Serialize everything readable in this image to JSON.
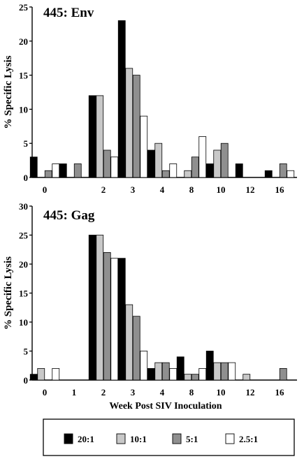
{
  "chart_data": [
    {
      "type": "bar",
      "title": "445: Env",
      "ylabel": "% Specific Lysis",
      "xlabel": "",
      "ylim": [
        0,
        25
      ],
      "yticks": [
        0,
        5,
        10,
        15,
        20,
        25
      ],
      "categories": [
        "0",
        "1",
        "2",
        "3",
        "4",
        "8",
        "10",
        "12",
        "16"
      ],
      "x_tick_labels": [
        "0",
        "",
        "2",
        "3",
        "4",
        "8",
        "10",
        "12",
        "16"
      ],
      "series": [
        {
          "name": "20:1",
          "color": "#000000",
          "values": [
            3,
            2,
            12,
            23,
            4,
            0,
            2,
            2,
            1
          ]
        },
        {
          "name": "10:1",
          "color": "#c8c8c8",
          "values": [
            0,
            0,
            12,
            16,
            5,
            1,
            4,
            0,
            0
          ]
        },
        {
          "name": "5:1",
          "color": "#8f8f8f",
          "values": [
            1,
            2,
            4,
            15,
            1,
            3,
            5,
            0,
            2
          ]
        },
        {
          "name": "2.5:1",
          "color": "#ffffff",
          "values": [
            2,
            0,
            3,
            9,
            2,
            6,
            0,
            0,
            1
          ]
        }
      ]
    },
    {
      "type": "bar",
      "title": "445: Gag",
      "ylabel": "% Specific Lysis",
      "xlabel": "Week Post SIV Inoculation",
      "ylim": [
        0,
        30
      ],
      "yticks": [
        0,
        5,
        10,
        15,
        20,
        25,
        30
      ],
      "categories": [
        "0",
        "1",
        "2",
        "3",
        "4",
        "8",
        "10",
        "12",
        "16"
      ],
      "x_tick_labels": [
        "0",
        "1",
        "2",
        "3",
        "4",
        "8",
        "10",
        "12",
        "16"
      ],
      "series": [
        {
          "name": "20:1",
          "color": "#000000",
          "values": [
            1,
            0,
            25,
            21,
            2,
            4,
            5,
            0,
            0
          ]
        },
        {
          "name": "10:1",
          "color": "#c8c8c8",
          "values": [
            2,
            0,
            25,
            13,
            3,
            1,
            3,
            1,
            0
          ]
        },
        {
          "name": "5:1",
          "color": "#8f8f8f",
          "values": [
            0,
            0,
            22,
            11,
            3,
            1,
            3,
            0,
            2
          ]
        },
        {
          "name": "2.5:1",
          "color": "#ffffff",
          "values": [
            2,
            0,
            21,
            5,
            2,
            2,
            3,
            0,
            0
          ]
        }
      ]
    }
  ],
  "legend": {
    "items": [
      {
        "label": "20:1",
        "color": "#000000"
      },
      {
        "label": "10:1",
        "color": "#c8c8c8"
      },
      {
        "label": "5:1",
        "color": "#8f8f8f"
      },
      {
        "label": "2.5:1",
        "color": "#ffffff"
      }
    ]
  }
}
